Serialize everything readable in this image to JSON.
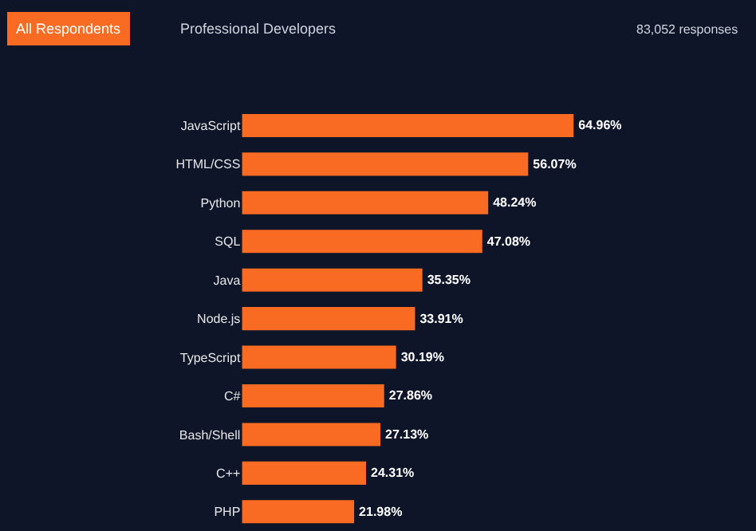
{
  "chart_data": {
    "type": "bar",
    "orientation": "horizontal",
    "categories": [
      "JavaScript",
      "HTML/CSS",
      "Python",
      "SQL",
      "Java",
      "Node.js",
      "TypeScript",
      "C#",
      "Bash/Shell",
      "C++",
      "PHP"
    ],
    "values": [
      64.96,
      56.07,
      48.24,
      47.08,
      35.35,
      33.91,
      30.19,
      27.86,
      27.13,
      24.31,
      21.98
    ],
    "value_labels": [
      "64.96%",
      "56.07%",
      "48.24%",
      "47.08%",
      "35.35%",
      "33.91%",
      "30.19%",
      "27.86%",
      "27.13%",
      "24.31%",
      "21.98%"
    ],
    "color": "#f96a22",
    "tick_labels": "y",
    "annotations": [
      "All Respondents",
      "Professional Developers",
      "83,052 responses"
    ]
  }
}
